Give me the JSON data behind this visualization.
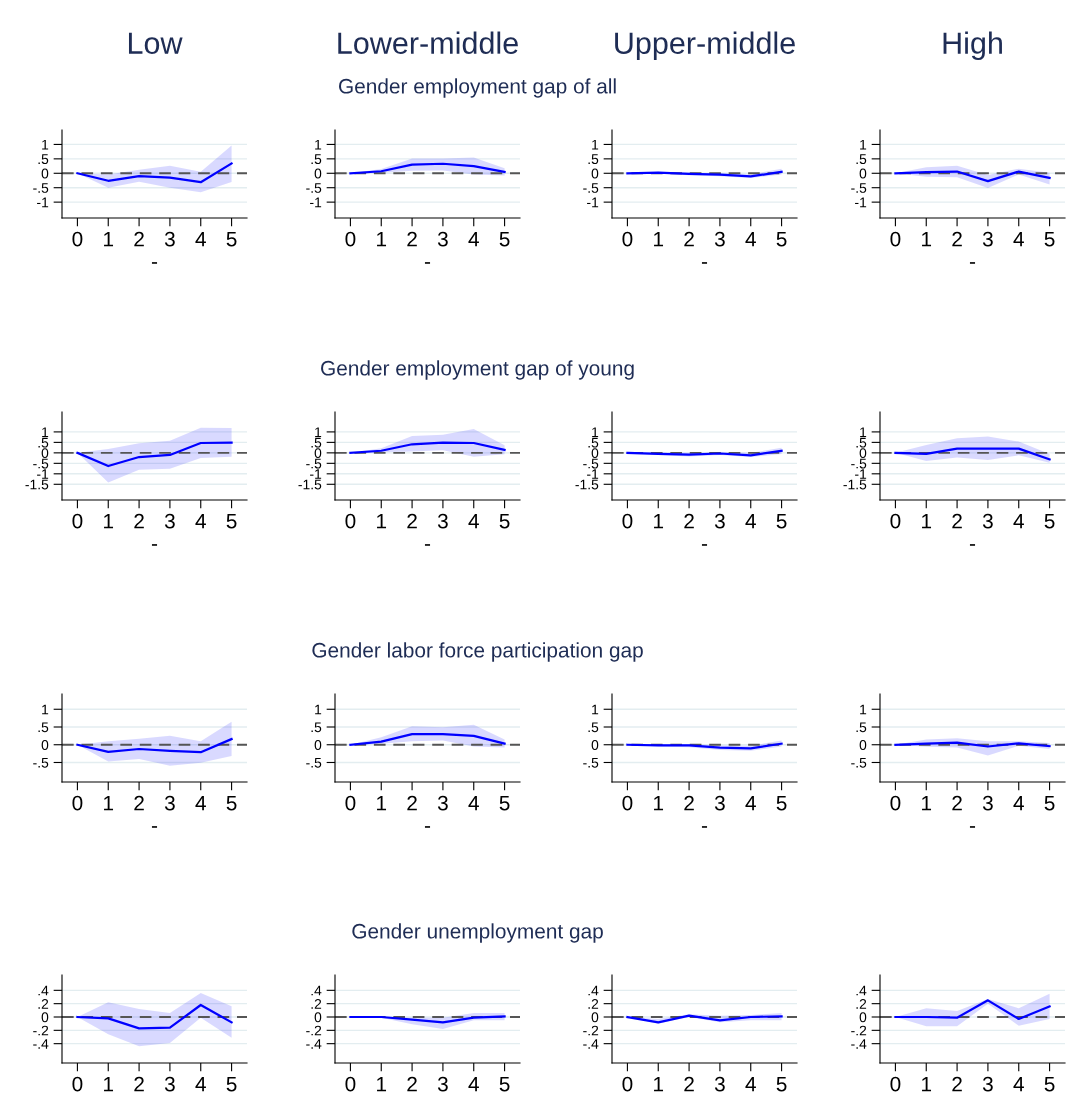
{
  "chart_data": [
    {
      "type": "line",
      "title": "Low",
      "xlabel": "-",
      "x": [
        0,
        1,
        2,
        3,
        4,
        5
      ],
      "xlim": [
        -0.5,
        5.5
      ],
      "xticks": [
        0,
        1,
        2,
        3,
        4,
        5
      ],
      "ylim": [
        -1.55,
        1.5
      ],
      "yticks": [
        {
          "value": -1,
          "label": "-1"
        },
        {
          "value": -0.5,
          "label": "-.5"
        },
        0,
        {
          "value": 0.5,
          "label": ".5"
        },
        1
      ],
      "grid": "y",
      "ref_lines": [
        {
          "axis": "y",
          "value": 0,
          "color": "#555555",
          "line_style": "dashed"
        }
      ],
      "series": [
        {
          "color": "#0000ff",
          "values": [
            0,
            -0.26,
            -0.1,
            -0.15,
            -0.31,
            0.34
          ],
          "lower": [
            0,
            -0.5,
            -0.29,
            -0.5,
            -0.66,
            -0.3
          ],
          "upper": [
            0,
            -0.04,
            0.12,
            0.26,
            0.05,
            0.96
          ]
        }
      ]
    },
    {
      "type": "line",
      "title": "Lower-middle",
      "subtitle": "Gender employment gap of all",
      "xlabel": "-",
      "x": [
        0,
        1,
        2,
        3,
        4,
        5
      ],
      "xlim": [
        -0.5,
        5.5
      ],
      "xticks": [
        0,
        1,
        2,
        3,
        4,
        5
      ],
      "ylim": [
        -1.55,
        1.5
      ],
      "yticks": [
        {
          "value": -1,
          "label": "-1"
        },
        {
          "value": -0.5,
          "label": "-.5"
        },
        0,
        {
          "value": 0.5,
          "label": ".5"
        },
        1
      ],
      "grid": "y",
      "ref_lines": [
        {
          "axis": "y",
          "value": 0,
          "color": "#555555",
          "line_style": "dashed"
        }
      ],
      "series": [
        {
          "color": "#0000ff",
          "values": [
            0,
            0.07,
            0.3,
            0.33,
            0.25,
            0.05
          ],
          "lower": [
            0,
            0.02,
            0.09,
            0.1,
            -0.04,
            -0.08
          ],
          "upper": [
            0,
            0.15,
            0.51,
            0.51,
            0.55,
            0.17
          ]
        }
      ]
    },
    {
      "type": "line",
      "title": "Upper-middle",
      "xlabel": "-",
      "x": [
        0,
        1,
        2,
        3,
        4,
        5
      ],
      "xlim": [
        -0.5,
        5.5
      ],
      "xticks": [
        0,
        1,
        2,
        3,
        4,
        5
      ],
      "ylim": [
        -1.55,
        1.5
      ],
      "yticks": [
        {
          "value": -1,
          "label": "-1"
        },
        {
          "value": -0.5,
          "label": "-.5"
        },
        0,
        {
          "value": 0.5,
          "label": ".5"
        },
        1
      ],
      "grid": "y",
      "ref_lines": [
        {
          "axis": "y",
          "value": 0,
          "color": "#555555",
          "line_style": "dashed"
        }
      ],
      "series": [
        {
          "color": "#0000ff",
          "values": [
            0,
            0.02,
            -0.02,
            -0.05,
            -0.11,
            0.05
          ],
          "lower": [
            0,
            -0.01,
            -0.07,
            -0.1,
            -0.16,
            -0.04
          ],
          "upper": [
            0,
            0.05,
            0.02,
            0,
            -0.04,
            0.16
          ]
        }
      ]
    },
    {
      "type": "line",
      "title": "High",
      "xlabel": "-",
      "x": [
        0,
        1,
        2,
        3,
        4,
        5
      ],
      "xlim": [
        -0.5,
        5.5
      ],
      "xticks": [
        0,
        1,
        2,
        3,
        4,
        5
      ],
      "ylim": [
        -1.55,
        1.5
      ],
      "yticks": [
        {
          "value": -1,
          "label": "-1"
        },
        {
          "value": -0.5,
          "label": "-.5"
        },
        0,
        {
          "value": 0.5,
          "label": ".5"
        },
        1
      ],
      "grid": "y",
      "ref_lines": [
        {
          "axis": "y",
          "value": 0,
          "color": "#555555",
          "line_style": "dashed"
        }
      ],
      "series": [
        {
          "color": "#0000ff",
          "values": [
            0,
            0.04,
            0.06,
            -0.27,
            0.06,
            -0.16
          ],
          "lower": [
            0,
            -0.12,
            -0.14,
            -0.51,
            -0.04,
            -0.39
          ],
          "upper": [
            0,
            0.21,
            0.26,
            -0.06,
            0.16,
            0.02
          ]
        }
      ]
    },
    {
      "type": "line",
      "xlabel": "-",
      "x": [
        0,
        1,
        2,
        3,
        4,
        5
      ],
      "xlim": [
        -0.5,
        5.5
      ],
      "xticks": [
        0,
        1,
        2,
        3,
        4,
        5
      ],
      "ylim": [
        -2.25,
        1.95
      ],
      "yticks": [
        {
          "value": -1.5,
          "label": "-1.5"
        },
        {
          "value": -1,
          "label": "-1"
        },
        {
          "value": -0.5,
          "label": "-.5"
        },
        0,
        {
          "value": 0.5,
          "label": ".5"
        },
        1
      ],
      "grid": "y",
      "ref_lines": [
        {
          "axis": "y",
          "value": 0,
          "color": "#555555",
          "line_style": "dashed"
        }
      ],
      "series": [
        {
          "color": "#0000ff",
          "values": [
            0,
            -0.63,
            -0.2,
            -0.1,
            0.47,
            0.49
          ],
          "lower": [
            0,
            -1.42,
            -0.81,
            -0.76,
            -0.25,
            -0.19
          ],
          "upper": [
            0,
            0.19,
            0.46,
            0.58,
            1.2,
            1.19
          ]
        }
      ]
    },
    {
      "type": "line",
      "xlabel": "-",
      "x": [
        0,
        1,
        2,
        3,
        4,
        5
      ],
      "xlim": [
        -0.5,
        5.5
      ],
      "xticks": [
        0,
        1,
        2,
        3,
        4,
        5
      ],
      "ylim": [
        -2.25,
        1.95
      ],
      "yticks": [
        {
          "value": -1.5,
          "label": "-1.5"
        },
        {
          "value": -1,
          "label": "-1"
        },
        {
          "value": -0.5,
          "label": "-.5"
        },
        0,
        {
          "value": 0.5,
          "label": ".5"
        },
        1
      ],
      "grid": "y",
      "ref_lines": [
        {
          "axis": "y",
          "value": 0,
          "color": "#555555",
          "line_style": "dashed"
        }
      ],
      "subtitle": "Gender employment gap of young",
      "series": [
        {
          "color": "#0000ff",
          "values": [
            0,
            0.1,
            0.41,
            0.49,
            0.47,
            0.14
          ],
          "lower": [
            0,
            0.03,
            0.07,
            0.12,
            -0.19,
            -0.07
          ],
          "upper": [
            0,
            0.22,
            0.81,
            0.86,
            1.14,
            0.36
          ]
        }
      ]
    },
    {
      "type": "line",
      "xlabel": "-",
      "x": [
        0,
        1,
        2,
        3,
        4,
        5
      ],
      "xlim": [
        -0.5,
        5.5
      ],
      "xticks": [
        0,
        1,
        2,
        3,
        4,
        5
      ],
      "ylim": [
        -2.25,
        1.95
      ],
      "yticks": [
        {
          "value": -1.5,
          "label": "-1.5"
        },
        {
          "value": -1,
          "label": "-1"
        },
        {
          "value": -0.5,
          "label": "-.5"
        },
        0,
        {
          "value": 0.5,
          "label": ".5"
        },
        1
      ],
      "grid": "y",
      "ref_lines": [
        {
          "axis": "y",
          "value": 0,
          "color": "#555555",
          "line_style": "dashed"
        }
      ],
      "series": [
        {
          "color": "#0000ff",
          "values": [
            0,
            -0.05,
            -0.08,
            -0.03,
            -0.12,
            0.1
          ],
          "lower": [
            0,
            -0.1,
            -0.17,
            -0.1,
            -0.2,
            -0.05
          ],
          "upper": [
            0,
            0.02,
            0,
            0.03,
            0,
            0.24
          ]
        }
      ]
    },
    {
      "type": "line",
      "xlabel": "-",
      "x": [
        0,
        1,
        2,
        3,
        4,
        5
      ],
      "xlim": [
        -0.5,
        5.5
      ],
      "xticks": [
        0,
        1,
        2,
        3,
        4,
        5
      ],
      "ylim": [
        -2.25,
        1.95
      ],
      "yticks": [
        {
          "value": -1.5,
          "label": "-1.5"
        },
        {
          "value": -1,
          "label": "-1"
        },
        {
          "value": -0.5,
          "label": "-.5"
        },
        0,
        {
          "value": 0.5,
          "label": ".5"
        },
        1
      ],
      "grid": "y",
      "ref_lines": [
        {
          "axis": "y",
          "value": 0,
          "color": "#555555",
          "line_style": "dashed"
        }
      ],
      "series": [
        {
          "color": "#0000ff",
          "values": [
            0,
            -0.05,
            0.2,
            0.2,
            0.2,
            -0.31
          ],
          "lower": [
            0,
            -0.39,
            -0.22,
            -0.34,
            -0.12,
            -0.47
          ],
          "upper": [
            0,
            0.37,
            0.7,
            0.78,
            0.54,
            -0.05
          ]
        }
      ]
    },
    {
      "type": "line",
      "xlabel": "-",
      "x": [
        0,
        1,
        2,
        3,
        4,
        5
      ],
      "xlim": [
        -0.5,
        5.5
      ],
      "xticks": [
        0,
        1,
        2,
        3,
        4,
        5
      ],
      "ylim": [
        -1.05,
        1.43
      ],
      "yticks": [
        {
          "value": -0.5,
          "label": "-.5"
        },
        0,
        {
          "value": 0.5,
          "label": ".5"
        },
        1
      ],
      "grid": "y",
      "ref_lines": [
        {
          "axis": "y",
          "value": 0,
          "color": "#555555",
          "line_style": "dashed"
        }
      ],
      "series": [
        {
          "color": "#0000ff",
          "values": [
            0,
            -0.2,
            -0.12,
            -0.17,
            -0.21,
            0.16
          ],
          "lower": [
            0,
            -0.47,
            -0.4,
            -0.59,
            -0.51,
            -0.32
          ],
          "upper": [
            0,
            0.1,
            0.17,
            0.25,
            0.1,
            0.65
          ]
        }
      ]
    },
    {
      "type": "line",
      "xlabel": "-",
      "x": [
        0,
        1,
        2,
        3,
        4,
        5
      ],
      "xlim": [
        -0.5,
        5.5
      ],
      "xticks": [
        0,
        1,
        2,
        3,
        4,
        5
      ],
      "ylim": [
        -1.05,
        1.43
      ],
      "yticks": [
        {
          "value": -0.5,
          "label": "-.5"
        },
        0,
        {
          "value": 0.5,
          "label": ".5"
        },
        1
      ],
      "grid": "y",
      "ref_lines": [
        {
          "axis": "y",
          "value": 0,
          "color": "#555555",
          "line_style": "dashed"
        }
      ],
      "subtitle": "Gender labor force participation gap",
      "series": [
        {
          "color": "#0000ff",
          "values": [
            0,
            0.09,
            0.3,
            0.3,
            0.25,
            0.03
          ],
          "lower": [
            0,
            0.03,
            0.1,
            0.12,
            -0.05,
            -0.08
          ],
          "upper": [
            0,
            0.21,
            0.52,
            0.49,
            0.56,
            0.15
          ]
        }
      ]
    },
    {
      "type": "line",
      "xlabel": "-",
      "x": [
        0,
        1,
        2,
        3,
        4,
        5
      ],
      "xlim": [
        -0.5,
        5.5
      ],
      "xticks": [
        0,
        1,
        2,
        3,
        4,
        5
      ],
      "ylim": [
        -1.05,
        1.43
      ],
      "yticks": [
        {
          "value": -0.5,
          "label": "-.5"
        },
        0,
        {
          "value": 0.5,
          "label": ".5"
        },
        1
      ],
      "grid": "y",
      "ref_lines": [
        {
          "axis": "y",
          "value": 0,
          "color": "#555555",
          "line_style": "dashed"
        }
      ],
      "series": [
        {
          "color": "#0000ff",
          "values": [
            0,
            -0.02,
            -0.02,
            -0.08,
            -0.1,
            0.03
          ],
          "lower": [
            0,
            -0.05,
            -0.07,
            -0.15,
            -0.17,
            -0.05
          ],
          "upper": [
            0,
            0.02,
            0.02,
            -0.02,
            -0.03,
            0.12
          ]
        }
      ]
    },
    {
      "type": "line",
      "xlabel": "-",
      "x": [
        0,
        1,
        2,
        3,
        4,
        5
      ],
      "xlim": [
        -0.5,
        5.5
      ],
      "xticks": [
        0,
        1,
        2,
        3,
        4,
        5
      ],
      "ylim": [
        -1.05,
        1.43
      ],
      "yticks": [
        {
          "value": -0.5,
          "label": "-.5"
        },
        0,
        {
          "value": 0.5,
          "label": ".5"
        },
        1
      ],
      "grid": "y",
      "ref_lines": [
        {
          "axis": "y",
          "value": 0,
          "color": "#555555",
          "line_style": "dashed"
        }
      ],
      "series": [
        {
          "color": "#0000ff",
          "values": [
            0,
            0.03,
            0.06,
            -0.05,
            0.04,
            -0.04
          ],
          "lower": [
            0,
            -0.06,
            -0.08,
            -0.3,
            -0.03,
            -0.12
          ],
          "upper": [
            0,
            0.15,
            0.18,
            0.1,
            0.1,
            0.05
          ]
        }
      ]
    },
    {
      "type": "line",
      "x": [
        0,
        1,
        2,
        3,
        4,
        5
      ],
      "xlim": [
        -0.5,
        5.5
      ],
      "xticks": [
        0,
        1,
        2,
        3,
        4,
        5
      ],
      "ylim": [
        -0.69,
        0.63
      ],
      "yticks": [
        {
          "value": -0.4,
          "label": "-.4"
        },
        {
          "value": -0.2,
          "label": "-.2"
        },
        0,
        {
          "value": 0.2,
          "label": ".2"
        },
        {
          "value": 0.4,
          "label": ".4"
        }
      ],
      "grid": "y",
      "ref_lines": [
        {
          "axis": "y",
          "value": 0,
          "color": "#555555",
          "line_style": "dashed"
        }
      ],
      "series": [
        {
          "color": "#0000ff",
          "values": [
            0,
            -0.02,
            -0.17,
            -0.16,
            0.18,
            -0.08
          ],
          "lower": [
            0,
            -0.26,
            -0.44,
            -0.39,
            -0.01,
            -0.31
          ],
          "upper": [
            0,
            0.22,
            0.12,
            0.06,
            0.36,
            0.16
          ]
        }
      ]
    },
    {
      "type": "line",
      "x": [
        0,
        1,
        2,
        3,
        4,
        5
      ],
      "xlim": [
        -0.5,
        5.5
      ],
      "xticks": [
        0,
        1,
        2,
        3,
        4,
        5
      ],
      "ylim": [
        -0.69,
        0.63
      ],
      "yticks": [
        {
          "value": -0.4,
          "label": "-.4"
        },
        {
          "value": -0.2,
          "label": "-.2"
        },
        0,
        {
          "value": 0.2,
          "label": ".2"
        },
        {
          "value": 0.4,
          "label": ".4"
        }
      ],
      "grid": "y",
      "ref_lines": [
        {
          "axis": "y",
          "value": 0,
          "color": "#555555",
          "line_style": "dashed"
        }
      ],
      "subtitle": "Gender unemployment gap",
      "series": [
        {
          "color": "#0000ff",
          "values": [
            0,
            0,
            -0.04,
            -0.08,
            -0.01,
            0.01
          ],
          "lower": [
            0,
            -0.01,
            -0.11,
            -0.18,
            -0.05,
            -0.05
          ],
          "upper": [
            0,
            0,
            -0.01,
            -0.01,
            0.06,
            0.06
          ]
        }
      ]
    },
    {
      "type": "line",
      "x": [
        0,
        1,
        2,
        3,
        4,
        5
      ],
      "xlim": [
        -0.5,
        5.5
      ],
      "xticks": [
        0,
        1,
        2,
        3,
        4,
        5
      ],
      "ylim": [
        -0.69,
        0.63
      ],
      "yticks": [
        {
          "value": -0.4,
          "label": "-.4"
        },
        {
          "value": -0.2,
          "label": "-.2"
        },
        0,
        {
          "value": 0.2,
          "label": ".2"
        },
        {
          "value": 0.4,
          "label": ".4"
        }
      ],
      "grid": "y",
      "ref_lines": [
        {
          "axis": "y",
          "value": 0,
          "color": "#555555",
          "line_style": "dashed"
        }
      ],
      "series": [
        {
          "color": "#0000ff",
          "values": [
            0,
            -0.08,
            0.02,
            -0.05,
            0,
            0.01
          ],
          "lower": [
            0,
            -0.1,
            0,
            -0.08,
            -0.05,
            -0.05
          ],
          "upper": [
            0,
            -0.03,
            0.04,
            0.02,
            0.03,
            0.06
          ]
        }
      ]
    },
    {
      "type": "line",
      "x": [
        0,
        1,
        2,
        3,
        4,
        5
      ],
      "xlim": [
        -0.5,
        5.5
      ],
      "xticks": [
        0,
        1,
        2,
        3,
        4,
        5
      ],
      "ylim": [
        -0.69,
        0.63
      ],
      "yticks": [
        {
          "value": -0.4,
          "label": "-.4"
        },
        {
          "value": -0.2,
          "label": "-.2"
        },
        0,
        {
          "value": 0.2,
          "label": ".2"
        },
        {
          "value": 0.4,
          "label": ".4"
        }
      ],
      "grid": "y",
      "ref_lines": [
        {
          "axis": "y",
          "value": 0,
          "color": "#555555",
          "line_style": "dashed"
        }
      ],
      "series": [
        {
          "color": "#0000ff",
          "values": [
            0,
            0,
            -0.01,
            0.25,
            -0.03,
            0.16
          ],
          "lower": [
            0,
            -0.14,
            -0.14,
            0.2,
            -0.13,
            -0.03
          ],
          "upper": [
            0,
            0.13,
            0.09,
            0.27,
            0.13,
            0.35
          ]
        }
      ]
    }
  ]
}
